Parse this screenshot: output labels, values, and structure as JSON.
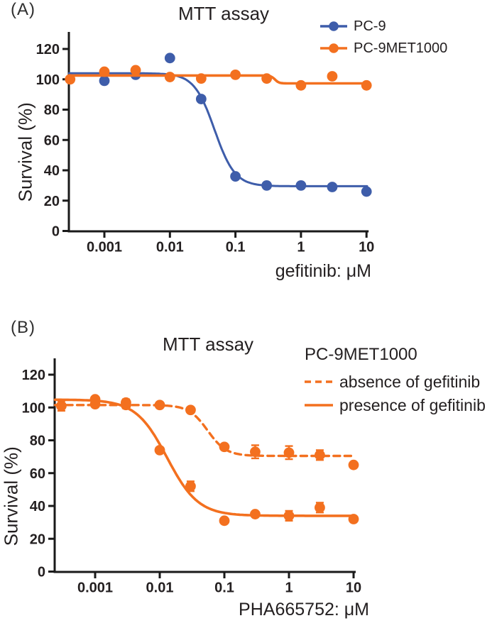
{
  "colors": {
    "blue": "#3E5DAA",
    "orange": "#F3701F",
    "text": "#231F20",
    "axis": "#1A1A1A"
  },
  "panels": {
    "a": "(A)",
    "b": "(B)"
  },
  "chart_data": [
    {
      "id": "A",
      "type": "line",
      "title": "MTT assay",
      "xlabel": "gefitinib: μM",
      "ylabel": "Survival (%)",
      "x_scale": "log",
      "xlim": [
        0.0003,
        10
      ],
      "ylim": [
        0,
        130
      ],
      "x_ticks": [
        0.001,
        0.01,
        0.1,
        1,
        10
      ],
      "x_tick_labels": [
        "0.001",
        "0.01",
        "0.1",
        "1",
        "10"
      ],
      "y_ticks": [
        0,
        20,
        40,
        60,
        80,
        100,
        120
      ],
      "grid": false,
      "legend_position": "top-right",
      "series": [
        {
          "name": "PC-9",
          "color": "#3E5DAA",
          "line_style": "solid",
          "marker": "circle",
          "x": [
            0.001,
            0.003,
            0.01,
            0.03,
            0.1,
            0.3,
            1,
            3,
            10
          ],
          "y": [
            99,
            103,
            114,
            87,
            36,
            30,
            30,
            29,
            26
          ],
          "err": [
            0,
            0,
            0,
            0,
            0,
            0,
            0,
            0,
            0
          ],
          "fit": {
            "model": "4PL",
            "top": 104,
            "bottom": 29.5,
            "ec50": 0.048,
            "hill": 2.8
          }
        },
        {
          "name": "PC-9MET1000",
          "color": "#F3701F",
          "line_style": "solid",
          "marker": "circle",
          "x": [
            0.0003,
            0.001,
            0.003,
            0.01,
            0.03,
            0.1,
            0.3,
            1,
            3,
            10
          ],
          "y": [
            100,
            105,
            106,
            101.5,
            100.5,
            103,
            100.5,
            96,
            102,
            96
          ],
          "err": [
            0,
            0,
            0,
            0,
            0,
            0,
            0,
            0,
            0,
            0
          ],
          "fit": {
            "model": "4PL",
            "top": 102.5,
            "bottom": 97.3,
            "ec50": 0.4,
            "hill": 14
          }
        }
      ]
    },
    {
      "id": "B",
      "type": "line",
      "title": "MTT assay",
      "xlabel": "PHA665752: μM",
      "ylabel": "Survival (%)",
      "x_scale": "log",
      "xlim": [
        0.0003,
        10
      ],
      "ylim": [
        0,
        130
      ],
      "x_ticks": [
        0.001,
        0.01,
        0.1,
        1,
        10
      ],
      "x_tick_labels": [
        "0.001",
        "0.01",
        "0.1",
        "1",
        "10"
      ],
      "y_ticks": [
        0,
        20,
        40,
        60,
        80,
        100,
        120
      ],
      "grid": false,
      "legend_header": "PC-9MET1000",
      "series": [
        {
          "name": "absence of gefitinib",
          "color": "#F3701F",
          "line_style": "dashed",
          "marker": "circle",
          "x": [
            0.0003,
            0.001,
            0.003,
            0.01,
            0.03,
            0.1,
            0.3,
            1,
            3,
            10
          ],
          "y": [
            101,
            102,
            101.5,
            101.5,
            98.5,
            76,
            73,
            72.5,
            71,
            65
          ],
          "err": [
            3,
            0,
            2,
            0,
            0,
            0,
            4,
            4,
            3,
            0
          ],
          "fit": {
            "model": "4PL",
            "top": 101.5,
            "bottom": 70.5,
            "ec50": 0.055,
            "hill": 3
          }
        },
        {
          "name": "presence of gefitinib",
          "color": "#F3701F",
          "line_style": "solid",
          "marker": "circle",
          "x": [
            0.001,
            0.003,
            0.01,
            0.03,
            0.1,
            0.3,
            1,
            3,
            10
          ],
          "y": [
            105,
            103,
            74,
            52,
            31,
            35,
            34,
            39,
            32
          ],
          "err": [
            0,
            2,
            0,
            3,
            0,
            0,
            3,
            3,
            0
          ],
          "fit": {
            "model": "4PL",
            "top": 104.8,
            "bottom": 34,
            "ec50": 0.013,
            "hill": 1.8
          }
        }
      ]
    }
  ]
}
